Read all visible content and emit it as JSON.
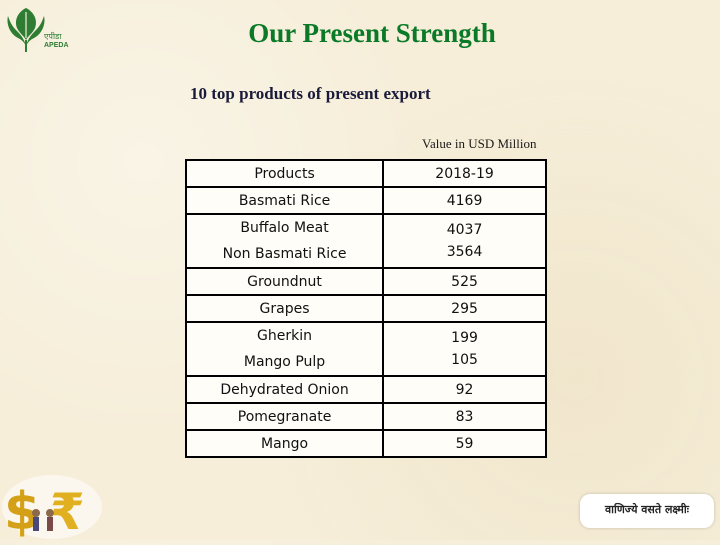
{
  "logo": {
    "hindi_name": "एपीडा",
    "brand": "APEDA"
  },
  "title": "Our Present Strength",
  "subtitle": "10 top products of present export",
  "unit_note": "Value in USD Million",
  "table": {
    "header": {
      "products": "Products",
      "year": "2018-19"
    },
    "rows": [
      {
        "products": [
          "Basmati Rice"
        ],
        "values": [
          "4169"
        ]
      },
      {
        "products": [
          "Buffalo Meat",
          "Non Basmati Rice"
        ],
        "values": [
          "4037",
          "3564"
        ]
      },
      {
        "products": [
          "Groundnut"
        ],
        "values": [
          "525"
        ]
      },
      {
        "products": [
          "Grapes"
        ],
        "values": [
          "295"
        ]
      },
      {
        "products": [
          "Gherkin",
          "Mango Pulp"
        ],
        "values": [
          "199",
          "105"
        ]
      },
      {
        "products": [
          "Dehydrated Onion"
        ],
        "values": [
          "92"
        ]
      },
      {
        "products": [
          "Pomegranate"
        ],
        "values": [
          "83"
        ]
      },
      {
        "products": [
          "Mango"
        ],
        "values": [
          "59"
        ]
      }
    ]
  },
  "footer": {
    "motto": "वाणिज्ये वसते लक्ष्मीः"
  },
  "colors": {
    "title": "#0a7a28",
    "subtitle": "#1a1a3a",
    "logo_green": "#2e7d32",
    "background": "#f6eed9"
  },
  "icons": [
    "apeda-leaf-logo",
    "dollar-rupee-coins-icon"
  ]
}
